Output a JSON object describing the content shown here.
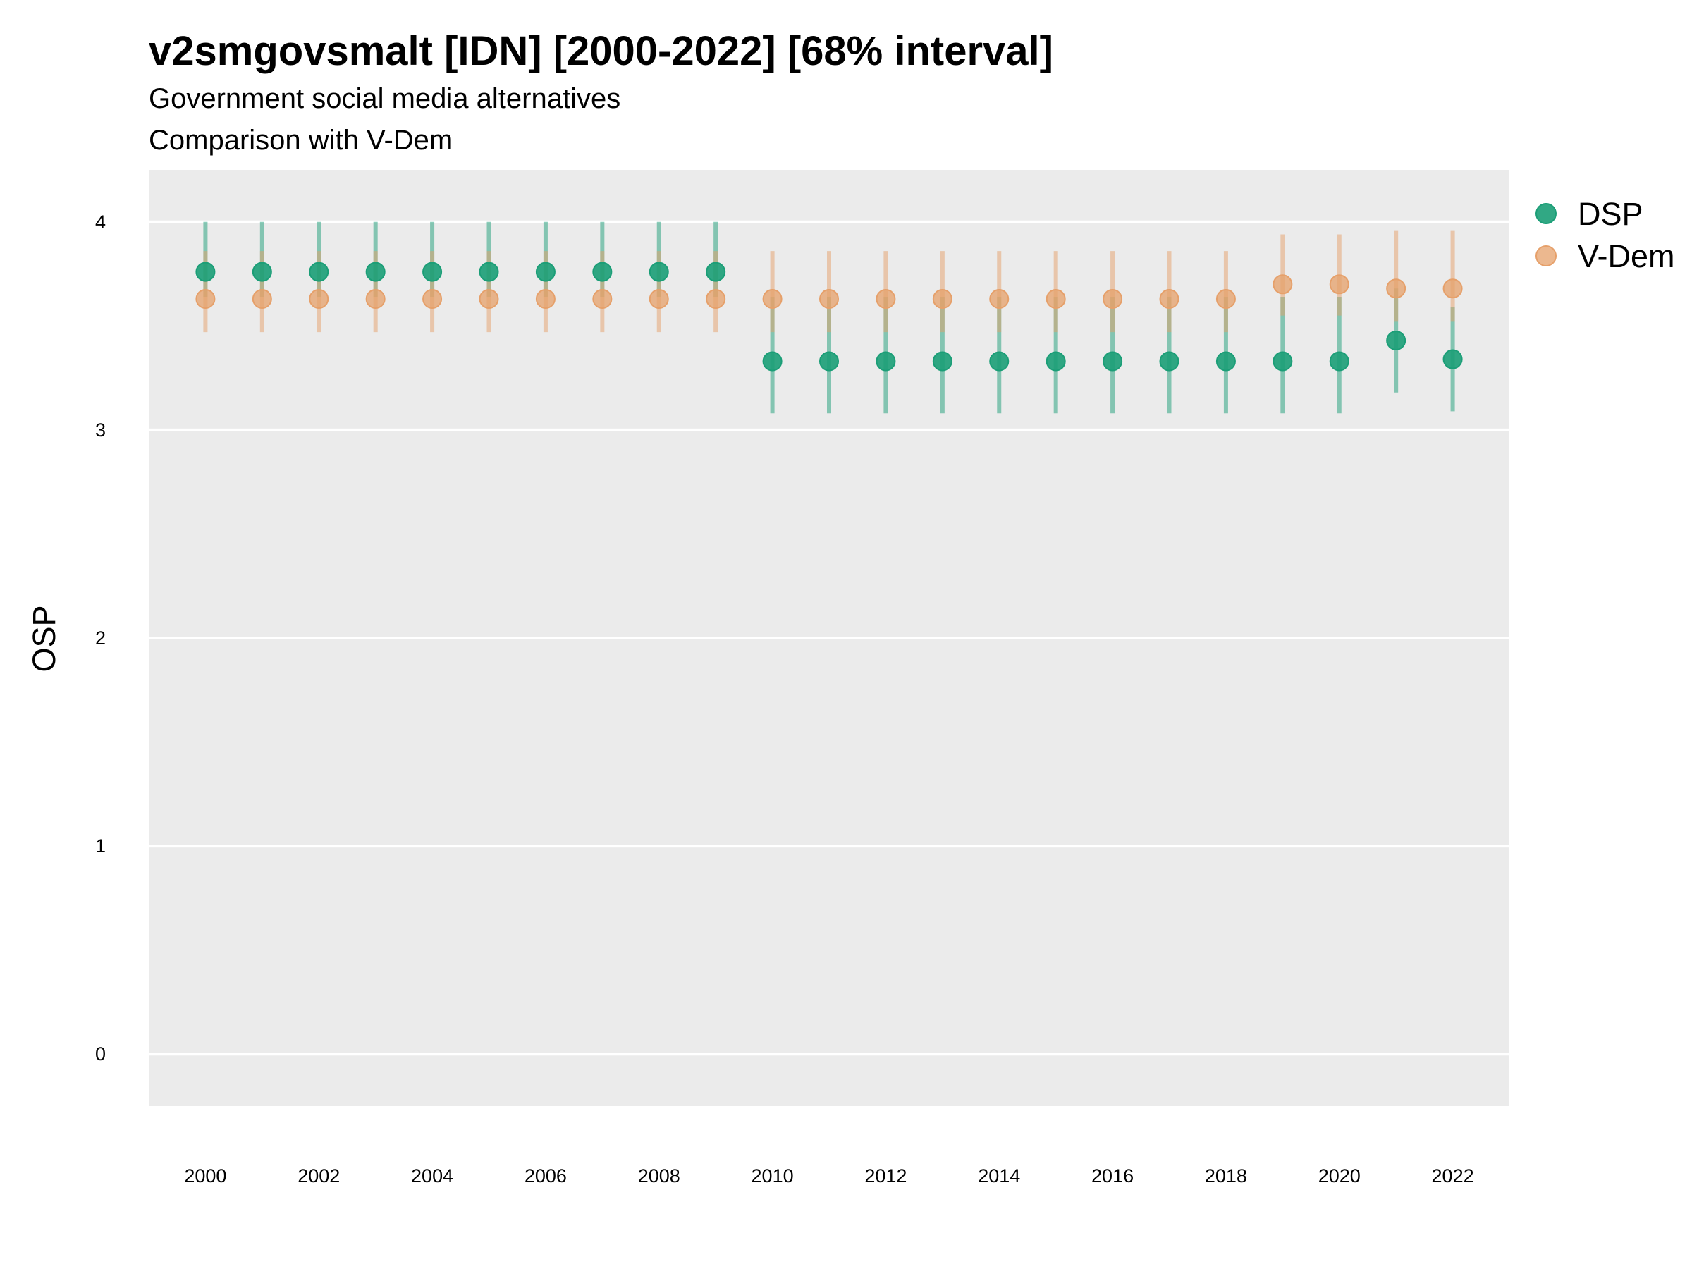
{
  "chart_data": {
    "type": "scatter",
    "title": "v2smgovsmalt [IDN] [2000-2022] [68% interval]",
    "subtitle": "Government social media alternatives",
    "subtitle2": "Comparison with V-Dem",
    "xlabel": "",
    "ylabel": "OSP",
    "x_ticks": [
      "2000",
      "2002",
      "2004",
      "2006",
      "2008",
      "2010",
      "2012",
      "2014",
      "2016",
      "2018",
      "2020",
      "2022"
    ],
    "y_ticks": [
      "0",
      "1",
      "2",
      "3",
      "4"
    ],
    "xlim": [
      1999,
      2023
    ],
    "ylim": [
      -0.25,
      4.25
    ],
    "grid": true,
    "legend_position": "right",
    "series": [
      {
        "name": "DSP",
        "color": "#1b9e77",
        "x": [
          2000,
          2001,
          2002,
          2003,
          2004,
          2005,
          2006,
          2007,
          2008,
          2009,
          2010,
          2011,
          2012,
          2013,
          2014,
          2015,
          2016,
          2017,
          2018,
          2019,
          2020,
          2021,
          2022
        ],
        "y": [
          3.76,
          3.76,
          3.76,
          3.76,
          3.76,
          3.76,
          3.76,
          3.76,
          3.76,
          3.76,
          3.33,
          3.33,
          3.33,
          3.33,
          3.33,
          3.33,
          3.33,
          3.33,
          3.33,
          3.33,
          3.33,
          3.43,
          3.34
        ],
        "lower": [
          3.64,
          3.64,
          3.64,
          3.64,
          3.64,
          3.64,
          3.64,
          3.64,
          3.64,
          3.64,
          3.08,
          3.08,
          3.08,
          3.08,
          3.08,
          3.08,
          3.08,
          3.08,
          3.08,
          3.08,
          3.08,
          3.18,
          3.09
        ],
        "upper": [
          4.0,
          4.0,
          4.0,
          4.0,
          4.0,
          4.0,
          4.0,
          4.0,
          4.0,
          4.0,
          3.64,
          3.64,
          3.64,
          3.64,
          3.64,
          3.64,
          3.64,
          3.64,
          3.64,
          3.64,
          3.64,
          3.68,
          3.59
        ]
      },
      {
        "name": "V-Dem",
        "color": "#e6a06a",
        "x": [
          2000,
          2001,
          2002,
          2003,
          2004,
          2005,
          2006,
          2007,
          2008,
          2009,
          2010,
          2011,
          2012,
          2013,
          2014,
          2015,
          2016,
          2017,
          2018,
          2019,
          2020,
          2021,
          2022
        ],
        "y": [
          3.63,
          3.63,
          3.63,
          3.63,
          3.63,
          3.63,
          3.63,
          3.63,
          3.63,
          3.63,
          3.63,
          3.63,
          3.63,
          3.63,
          3.63,
          3.63,
          3.63,
          3.63,
          3.63,
          3.7,
          3.7,
          3.68,
          3.68
        ],
        "lower": [
          3.47,
          3.47,
          3.47,
          3.47,
          3.47,
          3.47,
          3.47,
          3.47,
          3.47,
          3.47,
          3.47,
          3.47,
          3.47,
          3.47,
          3.47,
          3.47,
          3.47,
          3.47,
          3.47,
          3.55,
          3.55,
          3.52,
          3.52
        ],
        "upper": [
          3.86,
          3.86,
          3.86,
          3.86,
          3.86,
          3.86,
          3.86,
          3.86,
          3.86,
          3.86,
          3.86,
          3.86,
          3.86,
          3.86,
          3.86,
          3.86,
          3.86,
          3.86,
          3.86,
          3.94,
          3.94,
          3.96,
          3.96
        ]
      }
    ]
  }
}
